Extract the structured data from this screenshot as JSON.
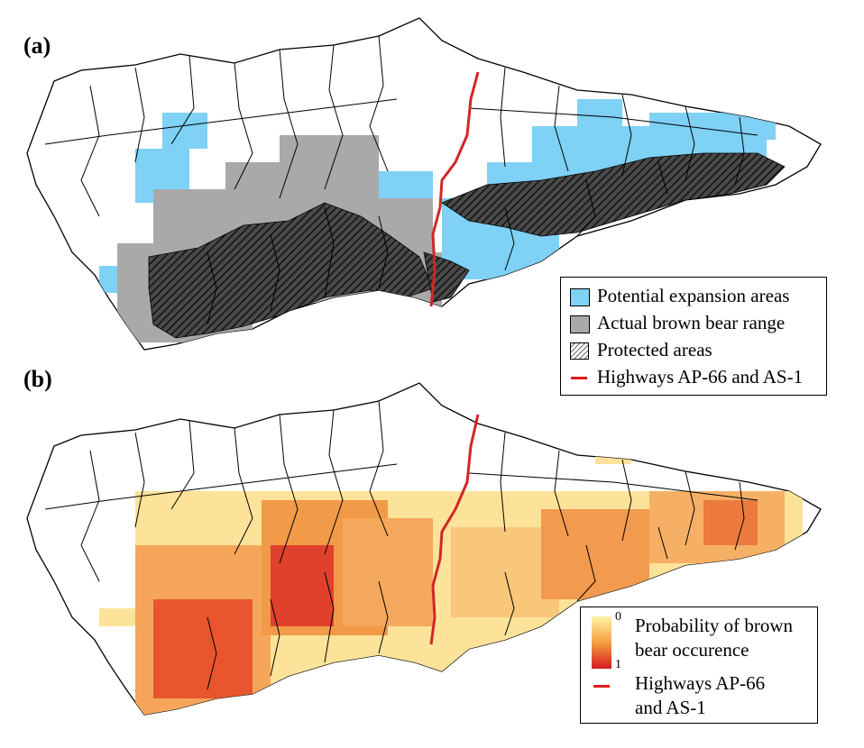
{
  "panels": [
    {
      "label": "(a)"
    },
    {
      "label": "(b)"
    }
  ],
  "colors": {
    "expansion": "#7fd1f5",
    "range": "#a9a9a9",
    "protected_fill": "#3a3a3a",
    "highway": "#d32626",
    "prob_low": "#fff2a8",
    "prob_high": "#d7181f",
    "outline": "#000000"
  },
  "legend_a": {
    "items": [
      {
        "label": "Potential expansion areas",
        "swatch": "expansion"
      },
      {
        "label": "Actual brown bear range",
        "swatch": "range"
      },
      {
        "label": "Protected areas",
        "swatch": "hatch"
      },
      {
        "label": "Highways AP-66 and AS-1",
        "swatch": "line"
      }
    ]
  },
  "legend_b": {
    "scale_min": "0",
    "scale_max": "1",
    "scale_label_line1": "Probability of brown",
    "scale_label_line2": "bear occurence",
    "highway_label_line1": "Highways AP-66",
    "highway_label_line2": "and AS-1"
  }
}
